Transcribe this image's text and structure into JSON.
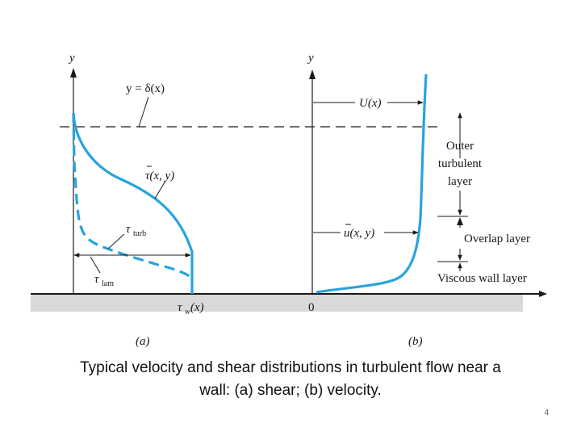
{
  "figure": {
    "left_axis_label": "y",
    "right_axis_label": "y",
    "delta_label": "y = δ(x)",
    "tau_label": "τ(x, y)",
    "tau_turb_sym": "τ",
    "tau_turb_sub": "turb",
    "tau_lam_sym": "τ",
    "tau_lam_sub": "lam",
    "tau_w_sym": "τ",
    "tau_w_sub": "w",
    "tau_w_arg": "(x)",
    "origin_label": "0",
    "U_label": "U(x)",
    "u_label": "u(x, y)",
    "outer_line1": "Outer",
    "outer_line2": "turbulent",
    "outer_line3": "layer",
    "overlap_label": "Overlap layer",
    "viscous_label": "Viscous wall layer",
    "panel_a": "(a)",
    "panel_b": "(b)",
    "curve_color": "#29a3dc"
  },
  "caption_line1": "Typical velocity and shear distributions in turbulent flow near a",
  "caption_line2": "wall: (a) shear; (b) velocity.",
  "page_number": "4"
}
